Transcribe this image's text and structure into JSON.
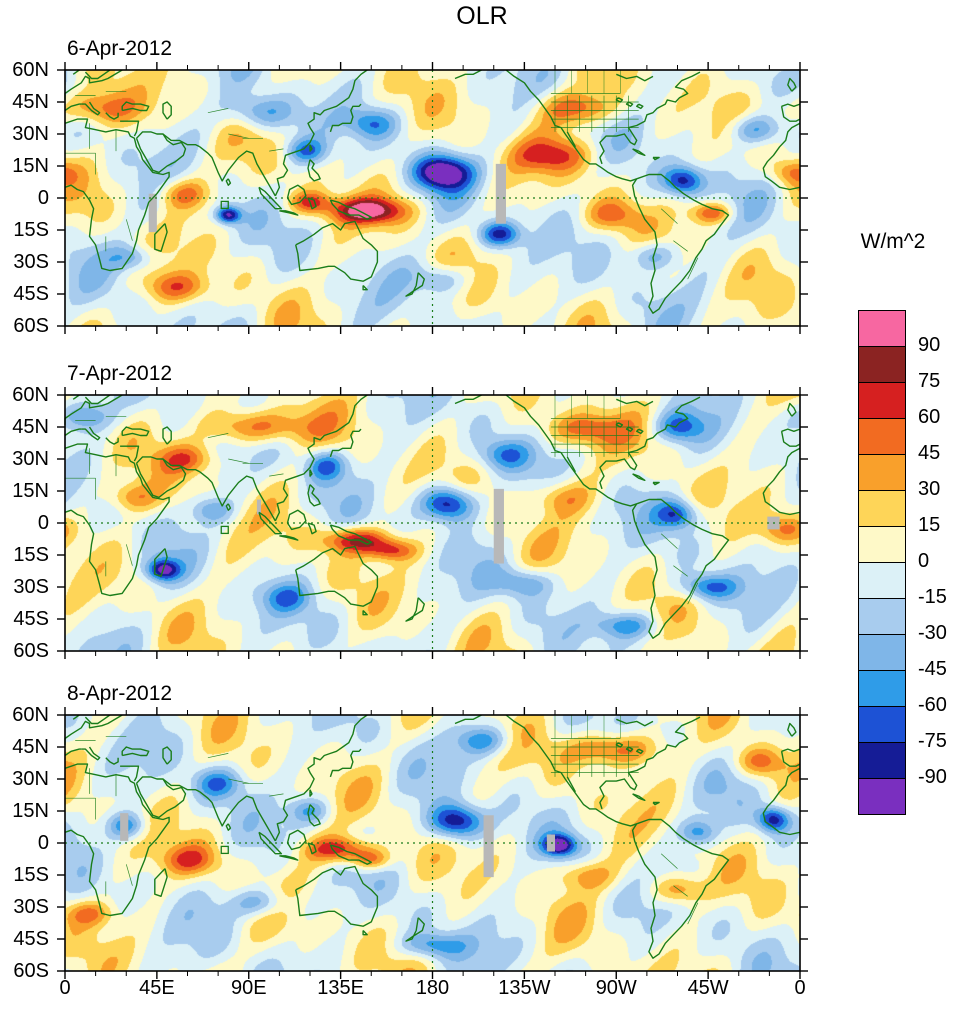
{
  "title": "OLR",
  "panels": [
    {
      "date": "6-Apr-2012"
    },
    {
      "date": "7-Apr-2012"
    },
    {
      "date": "8-Apr-2012"
    }
  ],
  "axes": {
    "lat_tick_labels": [
      "60N",
      "45N",
      "30N",
      "15N",
      "0",
      "15S",
      "30S",
      "45S",
      "60S"
    ],
    "lon_tick_labels": [
      "0",
      "45E",
      "90E",
      "135E",
      "180",
      "135W",
      "90W",
      "45W",
      "0"
    ]
  },
  "colorbar": {
    "unit_label": "W/m^2",
    "tick_labels": [
      "90",
      "75",
      "60",
      "45",
      "30",
      "15",
      "0",
      "-15",
      "-30",
      "-45",
      "-60",
      "-75",
      "-90"
    ]
  },
  "chart_data": {
    "type": "heatmap",
    "title": "OLR",
    "units": "W/m^2",
    "panel_dates": [
      "6-Apr-2012",
      "7-Apr-2012",
      "8-Apr-2012"
    ],
    "x_axis": {
      "tick_labels": [
        "0",
        "45E",
        "90E",
        "135E",
        "180",
        "135W",
        "90W",
        "45W",
        "0"
      ],
      "range_deg_east": [
        0,
        360
      ]
    },
    "y_axis": {
      "tick_labels": [
        "60N",
        "45N",
        "30N",
        "15N",
        "0",
        "15S",
        "30S",
        "45S",
        "60S"
      ],
      "range_deg_north": [
        -60,
        60
      ]
    },
    "contour_levels": [
      -90,
      -75,
      -60,
      -45,
      -30,
      -15,
      0,
      15,
      30,
      45,
      60,
      75,
      90
    ],
    "palette_low_to_high": [
      "#7A2FBF",
      "#151C96",
      "#1D52D5",
      "#2F9CE8",
      "#7FB6E8",
      "#A8CCEE",
      "#DCF1F7",
      "#FEF9C8",
      "#FED558",
      "#F9A02B",
      "#F26B21",
      "#D62020",
      "#8B2322",
      "#F767A1"
    ],
    "colorbar_position": "right",
    "reference_lines": {
      "equator": "dashed",
      "dateline_180": "dashed"
    },
    "coastline_color": "#1a7d1a",
    "missing_data_color": "#b8b8b8"
  }
}
